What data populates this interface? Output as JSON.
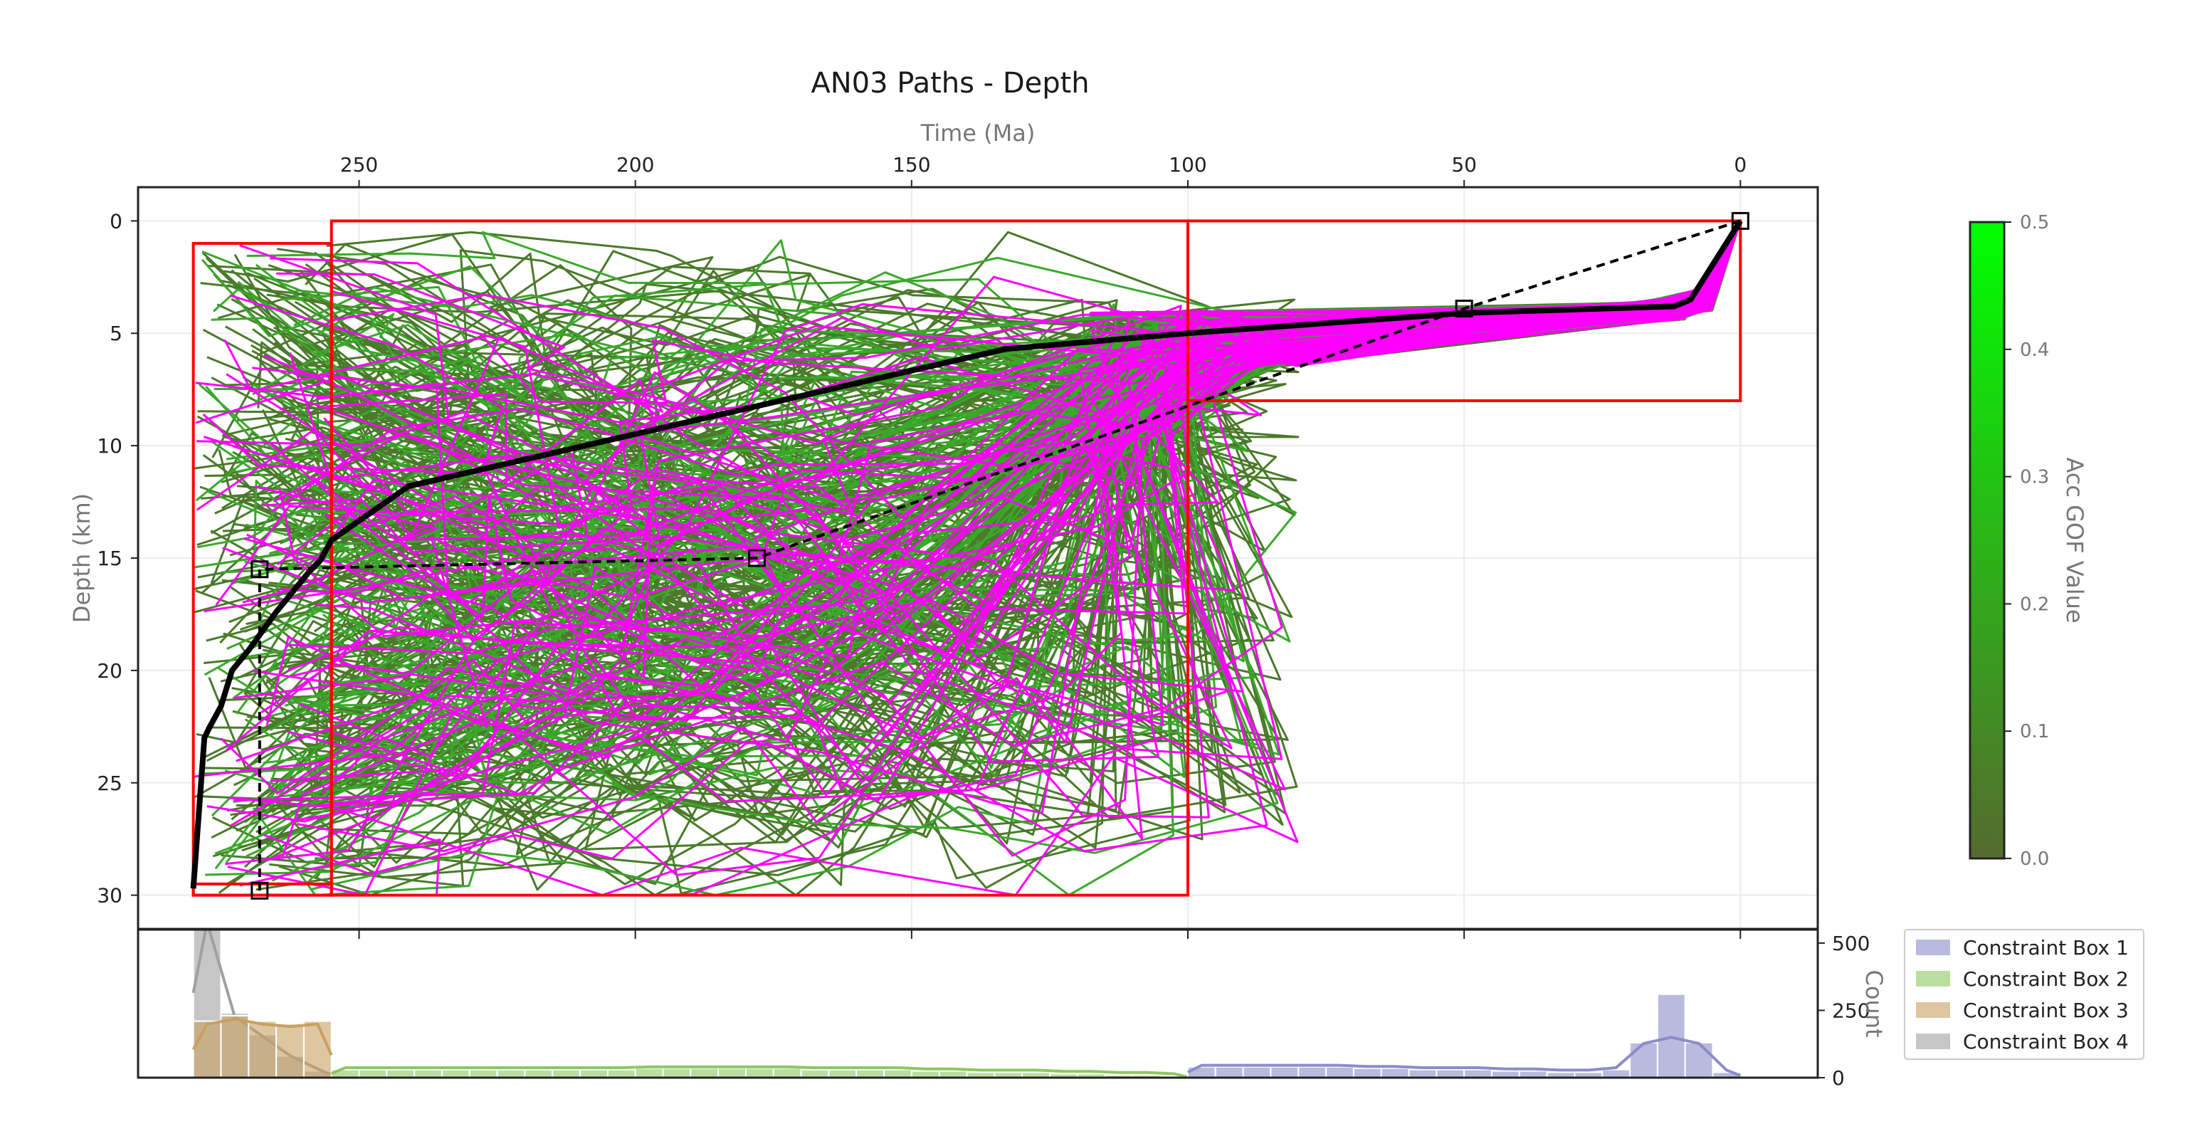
{
  "chart_data": [
    {
      "type": "line",
      "title": "AN03 Paths - Depth",
      "xlabel": "Time (Ma)",
      "ylabel": "Depth (km)",
      "x_axis_position": "top",
      "xlim": [
        290,
        -14
      ],
      "ylim": [
        31.5,
        -1.5
      ],
      "xticks": [
        250,
        200,
        150,
        100,
        50,
        0
      ],
      "yticks": [
        0,
        5,
        10,
        15,
        20,
        25,
        30
      ],
      "grid": true,
      "colors": {
        "low_gof_path": "#4a7a2a",
        "mid_gof_path": "#3aa82a",
        "good_path": "#ff00ff",
        "best_path": "#000000",
        "constraint_box": "#ff0000",
        "constraint_line": "#000000"
      },
      "series": [
        {
          "name": "",
          "role": "best-fit path",
          "x": [
            280,
            278,
            277,
            275,
            273,
            270,
            265,
            259,
            257,
            255,
            241,
            133,
            100,
            50,
            12,
            9,
            0
          ],
          "y": [
            29.7,
            23.0,
            22.5,
            21.6,
            20.0,
            19.1,
            17.4,
            15.6,
            15.1,
            14.2,
            11.8,
            5.7,
            5.0,
            4.1,
            3.8,
            3.5,
            0.0
          ]
        },
        {
          "name": "",
          "role": "constraint connector",
          "x": [
            0,
            50,
            178,
            268,
            268
          ],
          "y": [
            0,
            3.9,
            15.0,
            15.5,
            29.8
          ]
        }
      ],
      "constraint_boxes": [
        {
          "x_range": [
            100,
            0
          ],
          "y_range": [
            0,
            8
          ]
        },
        {
          "x_range": [
            255,
            100
          ],
          "y_range": [
            0,
            30
          ]
        },
        {
          "x_range": [
            280,
            255
          ],
          "y_range": [
            1,
            30
          ]
        },
        {
          "x_range": [
            280,
            255
          ],
          "y_range": [
            29.5,
            30
          ]
        }
      ],
      "colorbar": {
        "label": "Acc GOF Value",
        "range": [
          0.0,
          0.5
        ],
        "ticks": [
          "0.0",
          "0.1",
          "0.2",
          "0.3",
          "0.4",
          "0.5"
        ],
        "color_low": "#556b2f",
        "color_high": "#00ff00"
      }
    },
    {
      "type": "bar",
      "xlabel": "",
      "ylabel": "Count",
      "ylim": [
        0,
        550
      ],
      "yticks": [
        0,
        250,
        500
      ],
      "y_axis_position": "right",
      "legend_position": "right",
      "series": [
        {
          "name": "Constraint Box 1",
          "color": "#8c8cc8",
          "bins": [
            100,
            95,
            90,
            85,
            80,
            75,
            70,
            65,
            60,
            55,
            50,
            45,
            40,
            35,
            30,
            25,
            20,
            15,
            10,
            5
          ],
          "counts": [
            40,
            40,
            40,
            40,
            40,
            40,
            35,
            35,
            30,
            30,
            30,
            25,
            25,
            20,
            20,
            30,
            130,
            310,
            130,
            20
          ],
          "kde_peak": 150
        },
        {
          "name": "Constraint Box 2",
          "color": "#8cc860",
          "bins": [
            255,
            250,
            245,
            240,
            235,
            230,
            225,
            220,
            215,
            210,
            205,
            200,
            195,
            190,
            185,
            180,
            175,
            170,
            165,
            160,
            155,
            150,
            145,
            140,
            135,
            130,
            125,
            120,
            115,
            110,
            105
          ],
          "counts": [
            30,
            30,
            30,
            30,
            30,
            30,
            30,
            30,
            30,
            30,
            30,
            35,
            35,
            35,
            35,
            35,
            35,
            30,
            30,
            30,
            30,
            25,
            25,
            20,
            20,
            20,
            15,
            15,
            10,
            10,
            5
          ],
          "kde_peak": 40
        },
        {
          "name": "Constraint Box 3",
          "color": "#c8a060",
          "bins": [
            280,
            275,
            270,
            265,
            260
          ],
          "counts": [
            210,
            230,
            210,
            200,
            210
          ],
          "kde_peak": 220
        },
        {
          "name": "Constraint Box 4",
          "color": "#a0a0a0",
          "bins": [
            280,
            275,
            270,
            265,
            260
          ],
          "counts": [
            630,
            240,
            160,
            80,
            25
          ],
          "kde_peak": 610
        }
      ]
    }
  ]
}
